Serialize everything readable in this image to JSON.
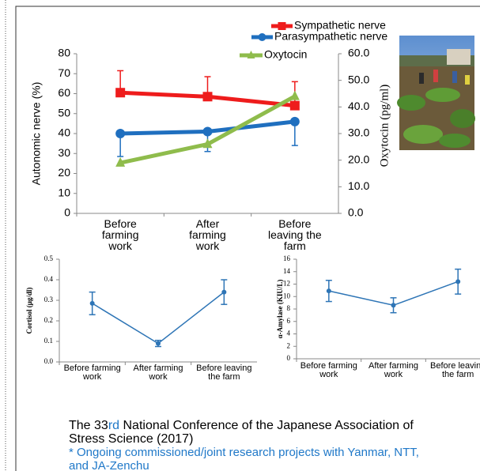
{
  "chart_data": [
    {
      "type": "line",
      "categories": [
        "Before farming work",
        "After farming work",
        "Before leaving the farm"
      ],
      "ylabel": "Autonomic nerve (%)",
      "y2label": "Oxytocin (pg/ml)",
      "ylim": [
        0,
        80
      ],
      "yticks": [
        0,
        10,
        20,
        30,
        40,
        50,
        60,
        70,
        80
      ],
      "y2lim": [
        0,
        60
      ],
      "y2ticks": [
        {
          "value": 0,
          "label": "0.0"
        },
        {
          "value": 10,
          "label": "10.0"
        },
        {
          "value": 20,
          "label": "20.0"
        },
        {
          "value": 30,
          "label": "30.0"
        },
        {
          "value": 40,
          "label": "40.0"
        },
        {
          "value": 50,
          "label": "50.0"
        },
        {
          "value": 60,
          "label": "60.0"
        }
      ],
      "legend": "top",
      "series": [
        {
          "name": "Sympathetic nerve",
          "color": "#ee1c1c",
          "marker": "square",
          "values": [
            60.5,
            58.5,
            54
          ],
          "error": [
            11,
            10,
            12
          ],
          "error_bars": "upper"
        },
        {
          "name": "Parasympathetic nerve",
          "color": "#1f6fbf",
          "marker": "circle",
          "values": [
            40,
            41,
            46
          ],
          "error": [
            11.5,
            10,
            12
          ],
          "error_bars": "lower"
        },
        {
          "name": "Oxytocin",
          "color": "#8fbc4c",
          "marker": "triangle",
          "axis": "y2",
          "values": [
            19,
            26,
            44
          ]
        }
      ]
    },
    {
      "type": "line",
      "categories": [
        "Before farming work",
        "After farming work",
        "Before leaving the farm"
      ],
      "ylabel": "Cortisol (μg/dl)",
      "ylim": [
        0,
        0.5
      ],
      "yticks": [
        {
          "value": 0,
          "label": "0.0"
        },
        0.1,
        0.2,
        0.3,
        0.4,
        0.5
      ],
      "series": [
        {
          "color": "#2e75b6",
          "marker": "circle",
          "values": [
            0.285,
            0.09,
            0.34
          ],
          "error": [
            0.055,
            0.015,
            0.06
          ],
          "error_bars": "both"
        }
      ]
    },
    {
      "type": "line",
      "categories": [
        "Before farming work",
        "After farming work",
        "Before leaving the farm"
      ],
      "ylabel": "α-Amylase (KIU/L)",
      "ylim": [
        0,
        16
      ],
      "yticks": [
        0,
        2,
        4,
        6,
        8,
        10,
        12,
        14,
        16
      ],
      "series": [
        {
          "color": "#2e75b6",
          "marker": "circle",
          "values": [
            10.9,
            8.6,
            12.4
          ],
          "error": [
            1.7,
            1.2,
            2.0
          ],
          "error_bars": "both"
        }
      ]
    }
  ],
  "caption": {
    "parts": [
      "The 33",
      "rd",
      " National Conference of the Japanese Association of Stress Science (2017)"
    ],
    "note": "* Ongoing commissioned/joint research projects with Yanmar, NTT, and JA-Zenchu"
  }
}
